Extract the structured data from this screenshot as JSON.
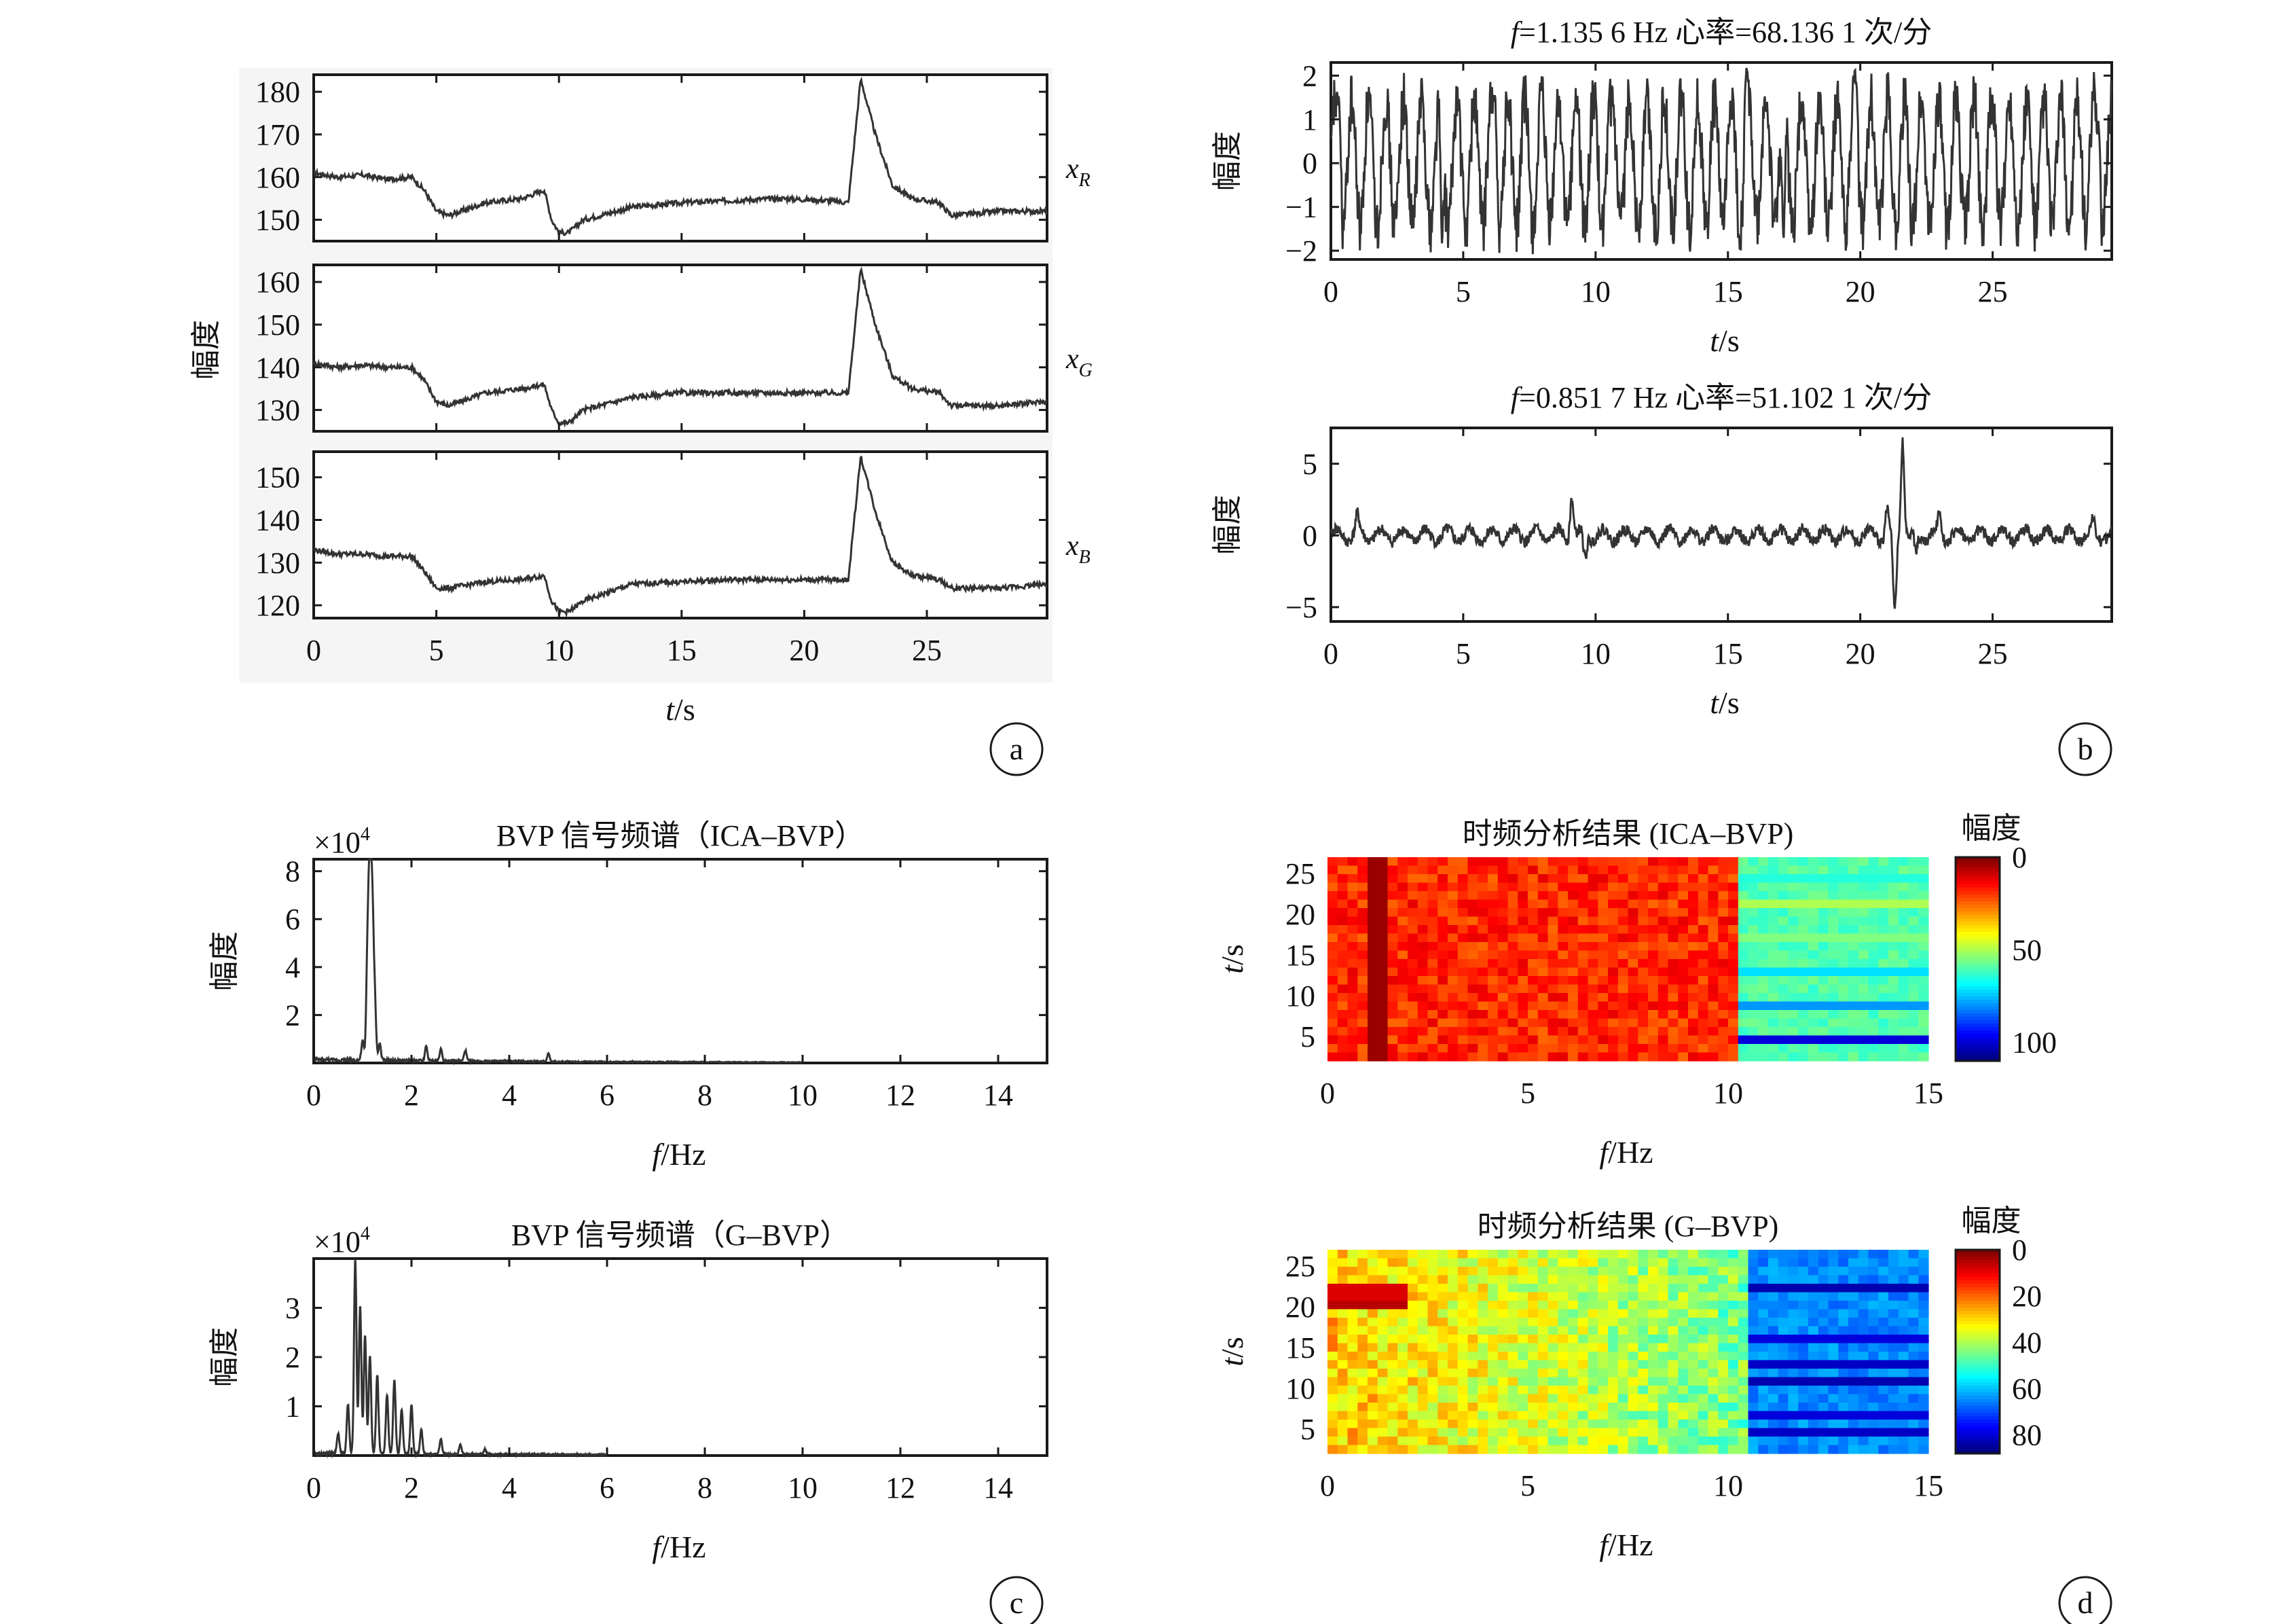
{
  "figure": {
    "panels": [
      {
        "id": "a",
        "letter": "a"
      },
      {
        "id": "b",
        "letter": "b"
      },
      {
        "id": "c",
        "letter": "c"
      },
      {
        "id": "d",
        "letter": "d"
      }
    ]
  },
  "chart_data": [
    {
      "id": "a",
      "type": "line",
      "panel": "a",
      "ylabel": "幅度",
      "xlabel": "t/s",
      "xlabel_italic": "t",
      "xlabel_rest": "/s",
      "xlim": [
        0,
        29.9
      ],
      "xticks": [
        0,
        5,
        10,
        15,
        20,
        25
      ],
      "channels": [
        {
          "name": "x",
          "sub": "R",
          "ylim": [
            145,
            184
          ],
          "yticks": [
            150,
            160,
            170,
            180
          ],
          "knots": [
            [
              0,
              161
            ],
            [
              1,
              160
            ],
            [
              2,
              160.5
            ],
            [
              3,
              159.5
            ],
            [
              4,
              160
            ],
            [
              4.5,
              157
            ],
            [
              5,
              152
            ],
            [
              5.5,
              151
            ],
            [
              7,
              154
            ],
            [
              8.5,
              155
            ],
            [
              9.4,
              157
            ],
            [
              9.7,
              150
            ],
            [
              10,
              147
            ],
            [
              10.4,
              147
            ],
            [
              11,
              150
            ],
            [
              13,
              153
            ],
            [
              15,
              154
            ],
            [
              17,
              154.5
            ],
            [
              19,
              155
            ],
            [
              21,
              154.5
            ],
            [
              21.8,
              154
            ],
            [
              22.3,
              183
            ],
            [
              22.9,
              170
            ],
            [
              23.6,
              158
            ],
            [
              24.4,
              155
            ],
            [
              25.5,
              154
            ],
            [
              26,
              151
            ],
            [
              28,
              152
            ],
            [
              29.9,
              152
            ]
          ],
          "noise": 0.6
        },
        {
          "name": "x",
          "sub": "G",
          "ylim": [
            125,
            164
          ],
          "yticks": [
            130,
            140,
            150,
            160
          ],
          "knots": [
            [
              0,
              141
            ],
            [
              1,
              140
            ],
            [
              2,
              140.5
            ],
            [
              3,
              140
            ],
            [
              4,
              140
            ],
            [
              4.5,
              137
            ],
            [
              5,
              132
            ],
            [
              5.5,
              131
            ],
            [
              7,
              134
            ],
            [
              8.5,
              135
            ],
            [
              9.4,
              136
            ],
            [
              9.7,
              130
            ],
            [
              10,
              127
            ],
            [
              10.4,
              127
            ],
            [
              11,
              130
            ],
            [
              13,
              133
            ],
            [
              15,
              134
            ],
            [
              17,
              134
            ],
            [
              19,
              134
            ],
            [
              21,
              134
            ],
            [
              21.8,
              134
            ],
            [
              22.3,
              163
            ],
            [
              22.9,
              150
            ],
            [
              23.6,
              138
            ],
            [
              24.4,
              135
            ],
            [
              25.5,
              134
            ],
            [
              26,
              131
            ],
            [
              28,
              131
            ],
            [
              29.9,
              132
            ]
          ],
          "noise": 0.6
        },
        {
          "name": "x",
          "sub": "B",
          "ylim": [
            117,
            156
          ],
          "yticks": [
            120,
            130,
            140,
            150
          ],
          "knots": [
            [
              0,
              133
            ],
            [
              1,
              132
            ],
            [
              2,
              132
            ],
            [
              3,
              131.5
            ],
            [
              4,
              131.5
            ],
            [
              4.5,
              128
            ],
            [
              5,
              124
            ],
            [
              5.5,
              124
            ],
            [
              7,
              125.5
            ],
            [
              8.5,
              126
            ],
            [
              9.4,
              127
            ],
            [
              9.7,
              121
            ],
            [
              10,
              118.5
            ],
            [
              10.4,
              118.5
            ],
            [
              11,
              121
            ],
            [
              13,
              125
            ],
            [
              15,
              125.5
            ],
            [
              17,
              126
            ],
            [
              19,
              126
            ],
            [
              21,
              126
            ],
            [
              21.8,
              126
            ],
            [
              22.3,
              155
            ],
            [
              22.9,
              142
            ],
            [
              23.6,
              130
            ],
            [
              24.4,
              127
            ],
            [
              25.5,
              126
            ],
            [
              26,
              124
            ],
            [
              28,
              124
            ],
            [
              29.9,
              125
            ]
          ],
          "noise": 0.6
        }
      ]
    },
    {
      "id": "b1",
      "type": "line",
      "panel": "b",
      "title": "f=1.135 6 Hz  心率=68.136 1 次/分",
      "ylabel": "幅度",
      "xlabel": "t/s",
      "xlabel_italic": "t",
      "xlabel_rest": "/s",
      "xlim": [
        0,
        29.5
      ],
      "ylim": [
        -2.2,
        2.3
      ],
      "xticks": [
        0,
        5,
        10,
        15,
        20,
        25
      ],
      "yticks": [
        2,
        1,
        0,
        -1,
        -2
      ],
      "signal": {
        "freq_hz": 1.1356,
        "amplitude": 1.45,
        "extrema": [
          [
            0.3,
            1.6
          ],
          [
            4.2,
            -2
          ],
          [
            6.2,
            1.6
          ],
          [
            15.7,
            2.2
          ],
          [
            17.1,
            -2.0
          ],
          [
            19.8,
            2.2
          ],
          [
            29,
            1.0
          ]
        ]
      }
    },
    {
      "id": "b2",
      "type": "line",
      "panel": "b",
      "title": "f=0.851 7 Hz  心率=51.102 1 次/分",
      "ylabel": "幅度",
      "xlabel": "t/s",
      "xlabel_italic": "t",
      "xlabel_rest": "/s",
      "xlim": [
        0,
        29.5
      ],
      "ylim": [
        -6,
        7.5
      ],
      "xticks": [
        0,
        5,
        10,
        15,
        20,
        25
      ],
      "yticks": [
        5,
        0,
        -5
      ],
      "signal": {
        "freq_hz": 0.8517,
        "amplitude": 0.45,
        "peaks": [
          [
            1,
            1.2
          ],
          [
            9.1,
            3.0
          ],
          [
            9.6,
            -1.8
          ],
          [
            21.0,
            1.8
          ],
          [
            21.3,
            -5.5
          ],
          [
            21.6,
            7.0
          ],
          [
            22.1,
            -1.5
          ],
          [
            23.0,
            1.6
          ],
          [
            28.8,
            0.8
          ]
        ]
      }
    },
    {
      "id": "c1",
      "type": "line",
      "panel": "c",
      "title": "BVP 信号频谱（ICA–BVP）",
      "scale_text": "×10",
      "scale_exp": "4",
      "ylabel": "幅度",
      "xlabel": "f/Hz",
      "xlabel_italic": "f",
      "xlabel_rest": "/Hz",
      "xlim": [
        0,
        15
      ],
      "ylim": [
        0,
        8.5
      ],
      "xticks": [
        0,
        2,
        4,
        6,
        8,
        10,
        12,
        14
      ],
      "yticks": [
        2,
        4,
        6,
        8
      ],
      "spectrum": {
        "fmax": 10,
        "peaks": [
          [
            1.0,
            0.8
          ],
          [
            1.1,
            4.5
          ],
          [
            1.15,
            8.7
          ],
          [
            1.2,
            6.0
          ],
          [
            1.25,
            2.5
          ],
          [
            1.35,
            0.7
          ],
          [
            2.3,
            0.6
          ],
          [
            2.6,
            0.5
          ],
          [
            3.1,
            0.45
          ],
          [
            4.8,
            0.35
          ]
        ],
        "floor": 0.15
      }
    },
    {
      "id": "c2",
      "type": "line",
      "panel": "c",
      "title": "BVP 信号频谱（G–BVP）",
      "scale_text": "×10",
      "scale_exp": "4",
      "ylabel": "幅度",
      "xlabel": "f/Hz",
      "xlabel_italic": "f",
      "xlabel_rest": "/Hz",
      "xlim": [
        0,
        15
      ],
      "ylim": [
        0,
        4
      ],
      "xticks": [
        0,
        2,
        4,
        6,
        8,
        10,
        12,
        14
      ],
      "yticks": [
        1,
        2,
        3
      ],
      "spectrum": {
        "fmax": 6,
        "peaks": [
          [
            0.5,
            0.4
          ],
          [
            0.7,
            1.0
          ],
          [
            0.85,
            3.95
          ],
          [
            0.95,
            3.0
          ],
          [
            1.05,
            2.4
          ],
          [
            1.15,
            2.0
          ],
          [
            1.3,
            1.6
          ],
          [
            1.5,
            1.2
          ],
          [
            1.65,
            1.5
          ],
          [
            1.8,
            0.9
          ],
          [
            2.0,
            1.0
          ],
          [
            2.2,
            0.5
          ],
          [
            2.6,
            0.3
          ],
          [
            3.0,
            0.2
          ],
          [
            3.5,
            0.1
          ]
        ],
        "floor": 0.05
      }
    },
    {
      "id": "d1",
      "type": "heatmap",
      "panel": "d",
      "title": "时频分析结果 (ICA–BVP)",
      "colorbar_title": "幅度",
      "ylabel": "t/s",
      "ylabel_italic": "t",
      "ylabel_rest": "/s",
      "xlabel": "f/Hz",
      "xlabel_italic": "f",
      "xlabel_rest": "/Hz",
      "xlim": [
        0,
        15
      ],
      "ylim": [
        2,
        27
      ],
      "xticks": [
        0,
        5,
        10,
        15
      ],
      "yticks": [
        5,
        10,
        15,
        20,
        25
      ],
      "clim": [
        0,
        110
      ],
      "cticks": [
        0,
        50,
        100
      ],
      "profile": {
        "low_band": [
          0,
          10.3
        ],
        "low_value": 18,
        "dark_band": [
          1.1,
          1.4
        ],
        "dark_value": 3,
        "high_value": 60,
        "stripe_rows": [
          [
            5,
            100
          ],
          [
            9,
            80
          ],
          [
            13,
            72
          ],
          [
            17,
            55
          ],
          [
            21,
            50
          ],
          [
            24,
            65
          ]
        ]
      }
    },
    {
      "id": "d2",
      "type": "heatmap",
      "panel": "d",
      "title": "时频分析结果 (G–BVP)",
      "colorbar_title": "幅度",
      "ylabel": "t/s",
      "ylabel_italic": "t",
      "ylabel_rest": "/s",
      "xlabel": "f/Hz",
      "xlabel_italic": "f",
      "xlabel_rest": "/Hz",
      "xlim": [
        0,
        15
      ],
      "ylim": [
        2,
        27
      ],
      "xticks": [
        0,
        5,
        10,
        15
      ],
      "yticks": [
        5,
        10,
        15,
        20,
        25
      ],
      "clim": [
        0,
        88
      ],
      "cticks": [
        0,
        20,
        40,
        60,
        80
      ],
      "profile": {
        "low_band": [
          0,
          10.5
        ],
        "low_value": 28,
        "gradient_to": 45,
        "hot_rows": [
          [
            21,
            5
          ],
          [
            22,
            8
          ]
        ],
        "high_value": 65,
        "stripe_rows": [
          [
            5,
            82
          ],
          [
            7,
            80
          ],
          [
            11,
            84
          ],
          [
            13,
            82
          ],
          [
            16,
            80
          ],
          [
            22,
            84
          ]
        ]
      }
    }
  ]
}
